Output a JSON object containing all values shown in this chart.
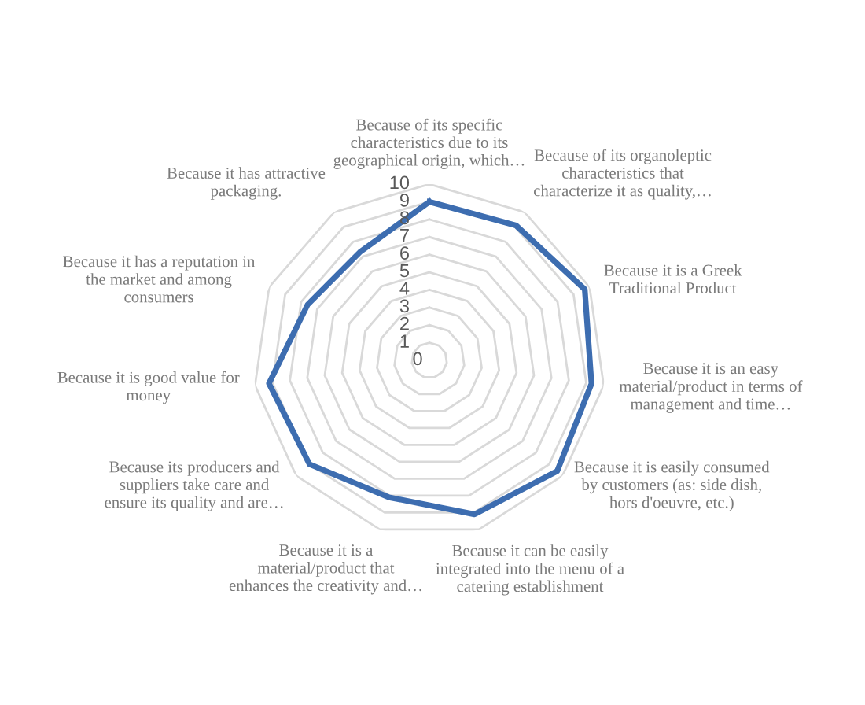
{
  "chart_data": {
    "type": "radar",
    "categories": [
      "Because of its specific\ncharacteristics due to its\ngeographical origin, which…",
      "Because of its organoleptic\ncharacteristics that\ncharacterize it as quality,…",
      "Because it is a Greek\nTraditional Product",
      "Because it is an easy\nmaterial/product in terms of\nmanagement and time…",
      "Because it is easily consumed\nby customers (as: side dish,\nhors d'oeuvre, etc.)",
      "Because it can be easily\nintegrated into the menu of a\ncatering establishment",
      "Because it is a\nmaterial/product that\nenhances the creativity and…",
      "Because its producers and\nsuppliers take care and\nensure its quality and are…",
      "Because it is good value for\nmoney",
      "Because it has a reputation in\nthe market and among\nconsumers",
      "Because it has attractive\npackaging."
    ],
    "series": [
      {
        "color": "#3d6db0",
        "values": [
          9.0,
          9.1,
          9.7,
          9.3,
          9.6,
          9.1,
          8.1,
          9.0,
          9.2,
          7.6,
          7.3
        ]
      }
    ],
    "ylim": [
      0,
      10
    ],
    "yticks": [
      0,
      1,
      2,
      3,
      4,
      5,
      6,
      7,
      8,
      9,
      10
    ],
    "grid": true
  }
}
